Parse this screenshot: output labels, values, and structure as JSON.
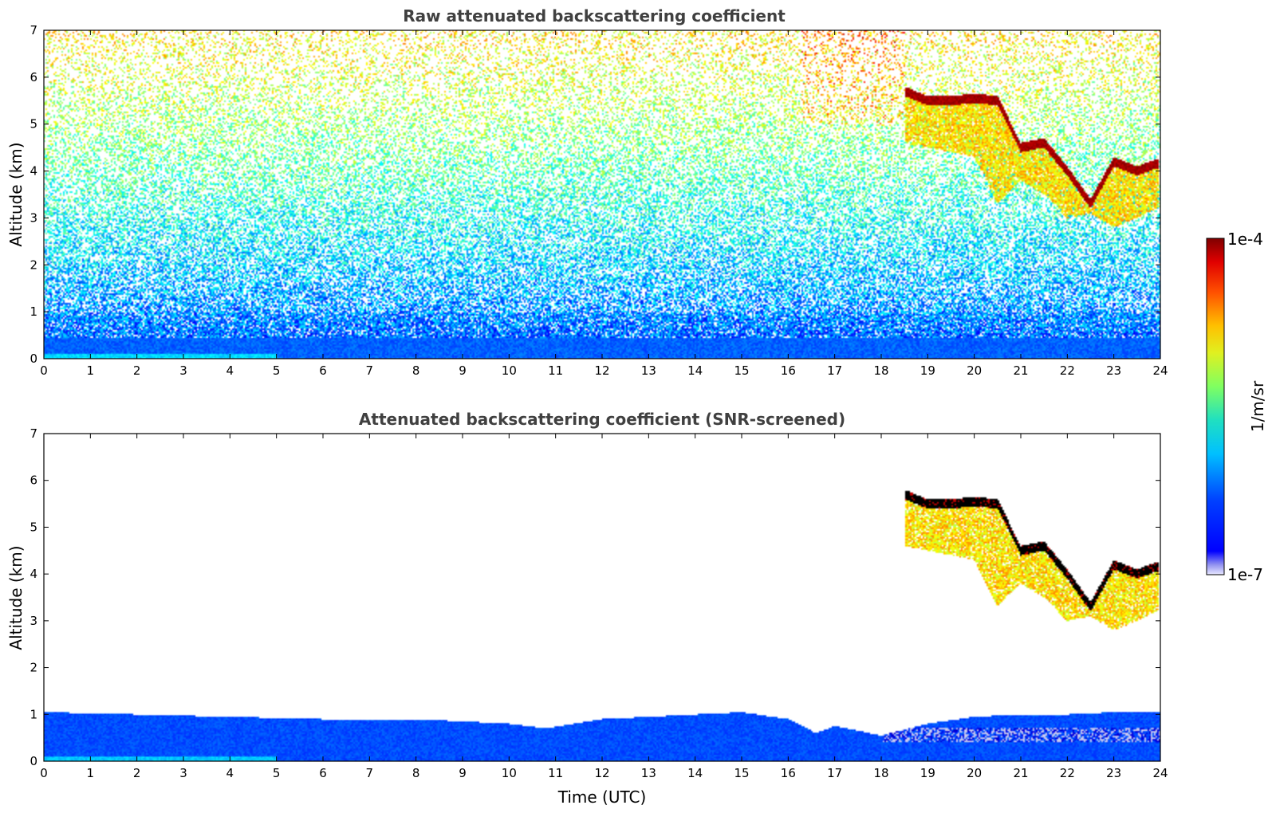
{
  "chart_data": [
    {
      "type": "heatmap",
      "title": "Raw attenuated backscattering coefficient",
      "xlabel": "",
      "ylabel": "Altitude (km)",
      "xlim": [
        0,
        24
      ],
      "ylim": [
        0,
        7
      ],
      "x_ticks": [
        0,
        1,
        2,
        3,
        4,
        5,
        6,
        7,
        8,
        9,
        10,
        11,
        12,
        13,
        14,
        15,
        16,
        17,
        18,
        19,
        20,
        21,
        22,
        23,
        24
      ],
      "y_ticks": [
        0,
        1,
        2,
        3,
        4,
        5,
        6,
        7
      ],
      "grid": false,
      "colormap": "jet",
      "features": {
        "boundary_layer_top_km": 0.5,
        "noise_increasing_with_altitude": true,
        "cloud_top_layer": {
          "time_utc": [
            18.5,
            19.0,
            19.5,
            20.0,
            20.5,
            21.0,
            21.5,
            22.0,
            22.5,
            23.0,
            23.5,
            23.9
          ],
          "altitude_km": [
            5.7,
            5.5,
            5.5,
            5.55,
            5.5,
            4.5,
            4.6,
            4.0,
            3.3,
            4.2,
            4.0,
            4.15
          ]
        },
        "precipitation_streaks_lower_km": [
          4.6,
          4.5,
          4.4,
          4.3,
          3.3,
          3.8,
          3.5,
          3.0,
          3.1,
          2.8,
          3.0,
          3.2
        ]
      }
    },
    {
      "type": "heatmap",
      "title": "Attenuated backscattering coefficient (SNR-screened)",
      "xlabel": "Time (UTC)",
      "ylabel": "Altitude (km)",
      "xlim": [
        0,
        24
      ],
      "ylim": [
        0,
        7
      ],
      "x_ticks": [
        0,
        1,
        2,
        3,
        4,
        5,
        6,
        7,
        8,
        9,
        10,
        11,
        12,
        13,
        14,
        15,
        16,
        17,
        18,
        19,
        20,
        21,
        22,
        23,
        24
      ],
      "y_ticks": [
        0,
        1,
        2,
        3,
        4,
        5,
        6,
        7
      ],
      "grid": false,
      "colormap": "jet",
      "features": {
        "boundary_layer_top_km": {
          "time_utc": [
            0,
            2,
            4,
            6,
            8,
            10,
            10.8,
            12,
            14,
            15,
            16,
            16.6,
            17,
            18,
            19,
            20,
            21,
            22,
            23,
            24
          ],
          "altitude_km": [
            1.05,
            1.0,
            0.95,
            0.9,
            0.9,
            0.8,
            0.7,
            0.9,
            1.0,
            1.05,
            0.9,
            0.6,
            0.75,
            0.55,
            0.8,
            0.95,
            1.0,
            1.0,
            1.05,
            1.05
          ]
        }
      }
    }
  ],
  "colorbar": {
    "label": "1/m/sr",
    "max_label": "1e-4",
    "min_label": "1e-7",
    "scale": "log",
    "range": [
      1e-07,
      0.0001
    ]
  }
}
